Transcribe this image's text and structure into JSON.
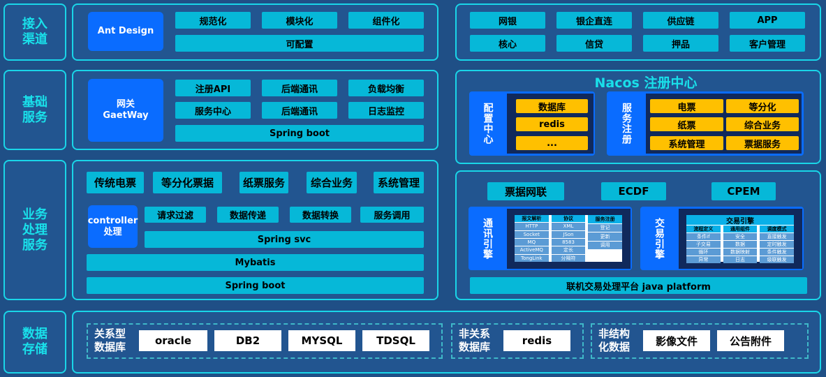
{
  "rows": {
    "access": "接入\n渠道",
    "base": "基础\n服务",
    "business": "业务\n处理\n服务",
    "storage": "数据\n存储"
  },
  "access": {
    "ant": "Ant Design",
    "tags": [
      "规范化",
      "模块化",
      "组件化"
    ],
    "configurable": "可配置",
    "channels": [
      "网银",
      "银企直连",
      "供应链",
      "APP",
      "核心",
      "信贷",
      "押品",
      "客户管理"
    ]
  },
  "base": {
    "gateway": "网关\nGaetWay",
    "tags": [
      "注册API",
      "后端通讯",
      "负载均衡",
      "服务中心",
      "后端通讯",
      "日志监控"
    ],
    "springboot": "Spring boot",
    "nacos": {
      "title": "Nacos  注册中心",
      "config_label": "配置中心",
      "config_items": [
        "数据库",
        "redis",
        "..."
      ],
      "registry_label": "服务注册",
      "registry_items": [
        "电票",
        "等分化",
        "纸票",
        "综合业务",
        "系统管理",
        "票据服务"
      ]
    }
  },
  "business": {
    "modules": [
      "传统电票",
      "等分化票据",
      "纸票服务",
      "综合业务",
      "系统管理"
    ],
    "controller": "controller\n处理",
    "steps": [
      "请求过滤",
      "数据传递",
      "数据转换",
      "服务调用"
    ],
    "springsvc": "Spring svc",
    "mybatis": "Mybatis",
    "springboot": "Spring boot",
    "systems": [
      "票据网联",
      "ECDF",
      "CPEM"
    ],
    "comm": {
      "label": "通讯引擎",
      "columns": [
        [
          "报文解析",
          "HTTP",
          "Socket",
          "MQ",
          "ActiveMQ",
          "TongLink"
        ],
        [
          "协议",
          "XML",
          "JSon",
          "8583",
          "定长",
          "分隔符"
        ],
        [
          "服务注册",
          "登记",
          "更新",
          "调用"
        ]
      ]
    },
    "trade": {
      "label": "交易引擎",
      "title": "交易引擎",
      "columns": [
        [
          "流程定义",
          "条件if",
          "子交易",
          "循环",
          "异常"
        ],
        [
          "通用组件",
          "安全",
          "数据",
          "数据映射",
          "日志"
        ],
        [
          "调度模式",
          "直接触发",
          "定时触发",
          "条件触发",
          "级联触发"
        ]
      ]
    },
    "platform": "联机交易处理平台  java platform"
  },
  "storage": {
    "relational": "关系型\n数据库",
    "rel_items": [
      "oracle",
      "DB2",
      "MYSQL",
      "TDSQL"
    ],
    "nonrel": "非关系\n数据库",
    "nonrel_items": [
      "redis"
    ],
    "unstructured": "非结构\n化数据",
    "un_items": [
      "影像文件",
      "公告附件"
    ]
  },
  "colors": {
    "background": "#1f4f86",
    "border": "#19d6e8",
    "cyan": "#06b8d8",
    "blue": "#0a6cff",
    "yellow": "#ffc000",
    "navy": "#10295c"
  }
}
